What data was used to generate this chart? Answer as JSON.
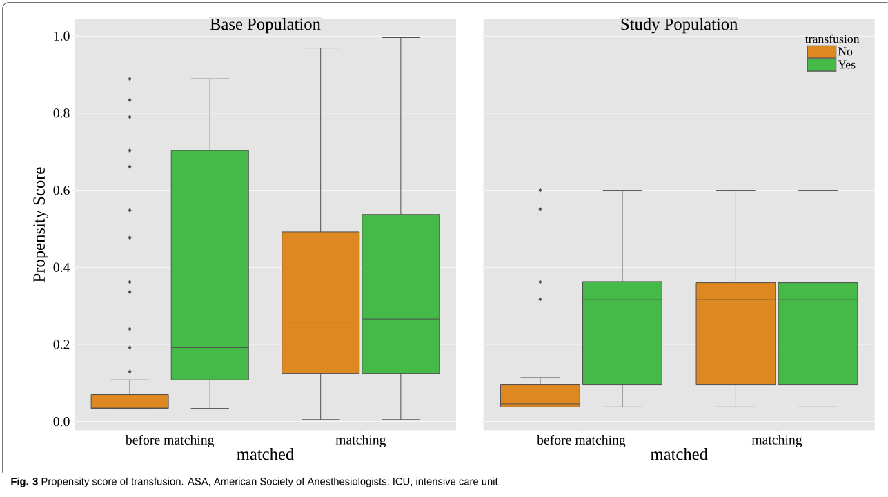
{
  "chart_data": [
    {
      "type": "box",
      "title": "Base Population",
      "xlabel": "matched",
      "ylabel": "Propensity Score",
      "categories": [
        "before matching",
        "matching"
      ],
      "series": [
        {
          "color": "#de8821",
          "boxes": [
            {
              "low": 0.034,
              "q1": 0.034,
              "median": 0.035,
              "q3": 0.07,
              "high": 0.108,
              "outliers": [
                0.889,
                0.834,
                0.79,
                0.703,
                0.661,
                0.548,
                0.477,
                0.362,
                0.336,
                0.24,
                0.192,
                0.129
              ]
            },
            {
              "low": 0.005,
              "q1": 0.124,
              "median": 0.258,
              "q3": 0.492,
              "high": 0.969
            }
          ]
        },
        {
          "color": "#46ba48",
          "boxes": [
            {
              "low": 0.034,
              "q1": 0.108,
              "median": 0.192,
              "q3": 0.703,
              "high": 0.889
            },
            {
              "low": 0.005,
              "q1": 0.124,
              "median": 0.266,
              "q3": 0.537,
              "high": 0.996
            }
          ]
        }
      ],
      "ylim": [
        -0.023,
        1.044
      ],
      "yticks": [
        {
          "value": 0,
          "label": "0.0"
        },
        0.2,
        0.4,
        0.6,
        0.8,
        {
          "value": 1,
          "label": "1.0"
        }
      ],
      "grid": "y",
      "marker": "diamond",
      "legend": false,
      "annotations": [
        "**Fig. 3** Propensity score of transfusion. ASA, American Society of Anesthesiologists; ICU, intensive care unit"
      ]
    },
    {
      "type": "box",
      "title": "Study Population",
      "xlabel": "matched",
      "legend_title": "transfusion",
      "categories": [
        "before matching",
        "matching"
      ],
      "series": [
        {
          "name": "No",
          "color": "#de8821",
          "boxes": [
            {
              "low": 0.038,
              "q1": 0.038,
              "median": 0.046,
              "q3": 0.095,
              "high": 0.114,
              "outliers": [
                0.6,
                0.551,
                0.362,
                0.317
              ]
            },
            {
              "low": 0.038,
              "q1": 0.095,
              "median": 0.316,
              "q3": 0.36,
              "high": 0.6
            }
          ]
        },
        {
          "name": "Yes",
          "color": "#46ba48",
          "boxes": [
            {
              "low": 0.038,
              "q1": 0.095,
              "median": 0.316,
              "q3": 0.363,
              "high": 0.6
            },
            {
              "low": 0.038,
              "q1": 0.095,
              "median": 0.316,
              "q3": 0.36,
              "high": 0.6
            }
          ]
        }
      ],
      "ylim": [
        -0.023,
        1.044
      ],
      "yticks": [
        0,
        0.2,
        0.4,
        0.6,
        0.8,
        1
      ],
      "grid": "y",
      "marker": "diamond",
      "legend": "top right",
      "tick_labels": "x"
    }
  ]
}
